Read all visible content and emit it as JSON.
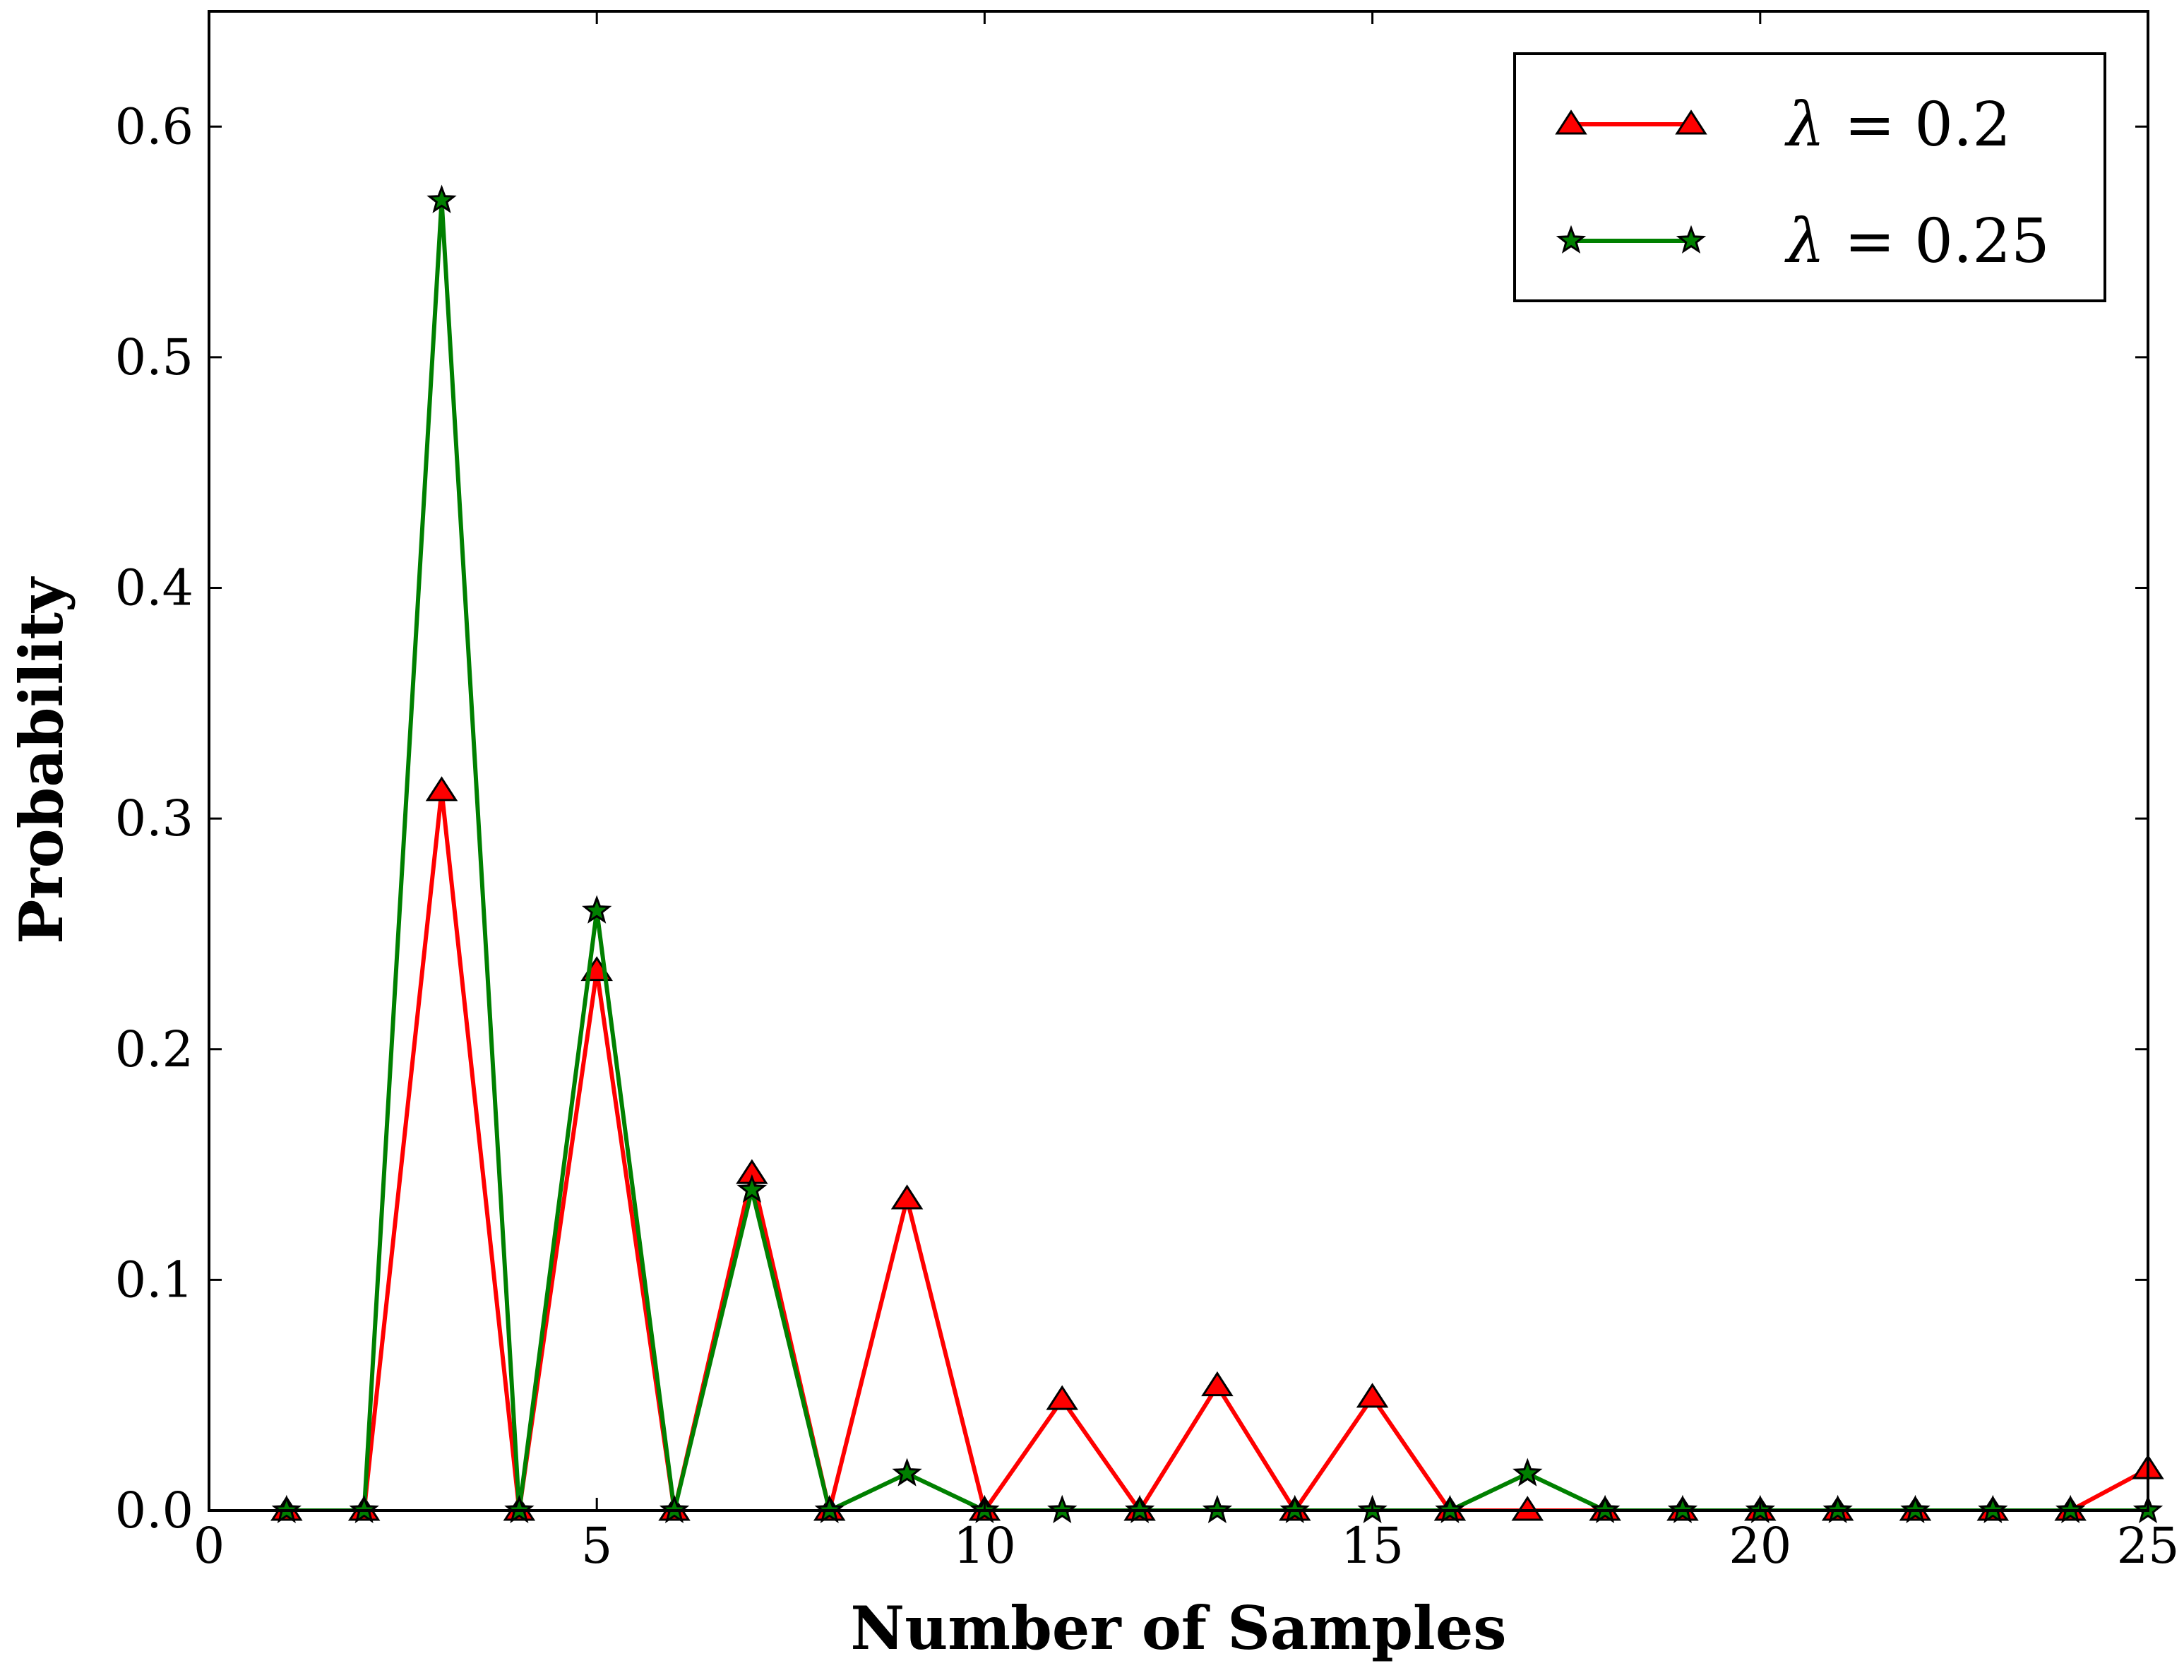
{
  "chart_data": {
    "type": "line",
    "title": "",
    "xlabel": "Number of Samples",
    "ylabel": "Probability",
    "xlim": [
      0,
      25
    ],
    "ylim": [
      0,
      0.65
    ],
    "xticks": [
      0,
      5,
      10,
      15,
      20,
      25
    ],
    "xtick_labels": [
      "0",
      "5",
      "10",
      "15",
      "20",
      "25"
    ],
    "yticks": [
      0.0,
      0.1,
      0.2,
      0.3,
      0.4,
      0.5,
      0.6
    ],
    "ytick_labels": [
      "0.0",
      "0.1",
      "0.2",
      "0.3",
      "0.4",
      "0.5",
      "0.6"
    ],
    "grid": false,
    "legend_position": "top-right",
    "series": [
      {
        "name": "λ = 0.2",
        "legend_symbol": "λ",
        "legend_rest": " = 0.2",
        "color": "#ff0000",
        "marker": "triangle",
        "x": [
          1,
          2,
          3,
          4,
          5,
          6,
          7,
          8,
          9,
          10,
          11,
          12,
          13,
          14,
          15,
          16,
          17,
          18,
          19,
          20,
          21,
          22,
          23,
          24,
          25
        ],
        "y": [
          0,
          0,
          0.312,
          0,
          0.234,
          0,
          0.146,
          0,
          0.135,
          0,
          0.048,
          0,
          0.054,
          0,
          0.049,
          0,
          0,
          0,
          0,
          0,
          0,
          0,
          0,
          0,
          0.018
        ]
      },
      {
        "name": "λ = 0.25",
        "legend_symbol": "λ",
        "legend_rest": " = 0.25",
        "color": "#008000",
        "marker": "star",
        "x": [
          1,
          2,
          3,
          4,
          5,
          6,
          7,
          8,
          9,
          10,
          11,
          12,
          13,
          14,
          15,
          16,
          17,
          18,
          19,
          20,
          21,
          22,
          23,
          24,
          25
        ],
        "y": [
          0,
          0,
          0.568,
          0,
          0.26,
          0,
          0.139,
          0,
          0.016,
          0,
          0,
          0,
          0,
          0,
          0,
          0,
          0.016,
          0,
          0,
          0,
          0,
          0,
          0,
          0,
          0
        ]
      }
    ]
  }
}
